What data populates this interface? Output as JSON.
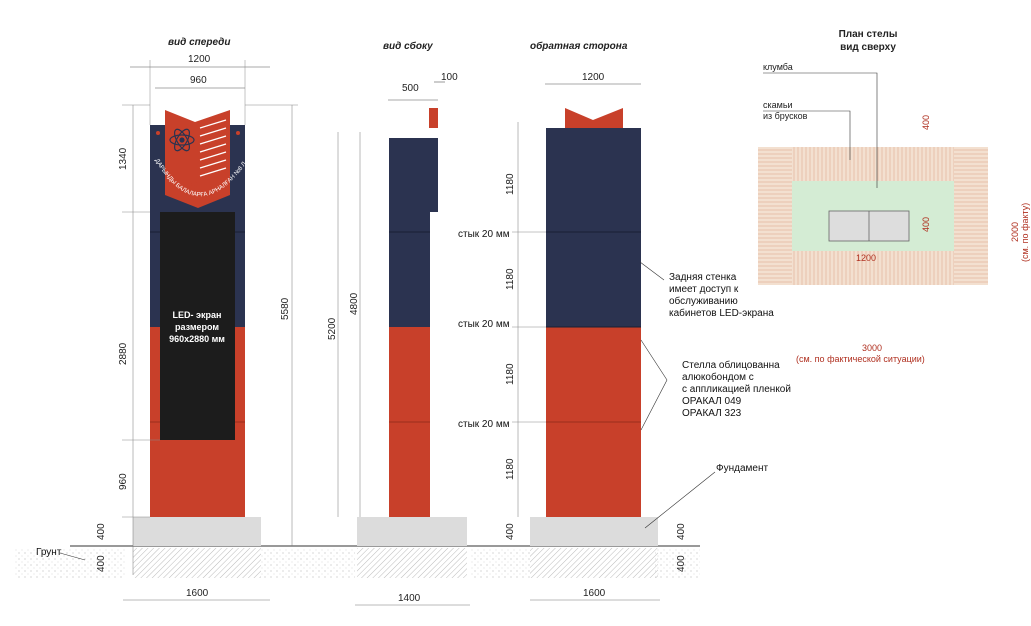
{
  "views": {
    "front_title": "вид спереди",
    "side_title": "вид сбоку",
    "back_title": "обратная сторона"
  },
  "front": {
    "dim_top_outer": "1200",
    "dim_top_inner": "960",
    "dim_h_top": "1340",
    "dim_h_mid": "2880",
    "dim_h_bottom": "960",
    "dim_h_total": "5580",
    "dim_found_above": "400",
    "dim_found_below": "400",
    "dim_base": "1600",
    "badge_number": "8",
    "arc_text": "ДАРЫНДЫ БАЛАЛАРҒА АРНАЛҒАН №8 ЛИЦЕЙ-МЕКТЕБІ",
    "led_label_1": "LED- экран",
    "led_label_2": "размером",
    "led_label_3": "960x2880 мм",
    "ground_label": "Грунт"
  },
  "side": {
    "dim_top_500": "500",
    "dim_top_100": "100",
    "dim_h_4800": "4800",
    "dim_h_5200": "5200",
    "dim_base": "1400"
  },
  "back": {
    "dim_top": "1200",
    "dim_seg_1": "1180",
    "dim_seg_2": "1180",
    "dim_seg_3": "1180",
    "dim_seg_4": "1180",
    "joint_1": "стык 20 мм",
    "joint_2": "стык 20 мм",
    "joint_3": "стык 20 мм",
    "dim_found_left": "400",
    "dim_found_right_1": "400",
    "dim_found_right_2": "400",
    "dim_base": "1600",
    "note_back_wall": [
      "Задняя стенка",
      "имеет доступ к",
      "обслуживанию",
      "кабинетов LED-экрана"
    ],
    "note_cladding": [
      "Стелла облицованна",
      "алюкобондом с",
      "с аппликацией пленкой",
      "ОРАКАЛ 049",
      "ОРАКАЛ 323"
    ],
    "note_foundation": "Фундамент"
  },
  "plan": {
    "title_1": "План стелы",
    "title_2": "вид сверху",
    "label_flowerbed": "клумба",
    "label_benches_1": "скамьи",
    "label_benches_2": "из брусков",
    "dim_400_top": "400",
    "dim_400_inner": "400",
    "dim_1200": "1200",
    "dim_2000": "2000",
    "dim_2000_note": "(см. по факту)",
    "dim_3000": "3000",
    "dim_3000_note": "(см. по фактической ситуации)"
  },
  "colors": {
    "navy": "#2b3350",
    "orange": "#c8402a",
    "led": "#1c1c1c",
    "foundation": "#dcdcdc",
    "wood": "#f3e0d0",
    "grass": "#d4ecd4"
  }
}
